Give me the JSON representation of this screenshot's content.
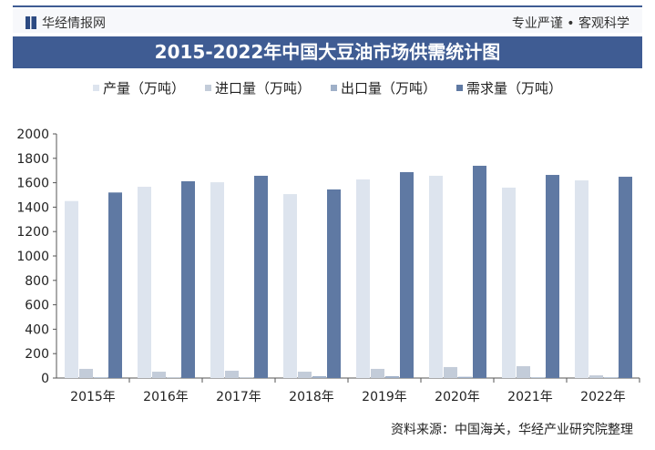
{
  "header": {
    "brand": "华经情报网",
    "slogan": "专业严谨 • 客观科学"
  },
  "chart_data": {
    "type": "bar",
    "title": "2015-2022年中国大豆油市场供需统计图",
    "categories": [
      "2015年",
      "2016年",
      "2017年",
      "2018年",
      "2019年",
      "2020年",
      "2021年",
      "2022年"
    ],
    "series": [
      {
        "name": "产量（万吨）",
        "color": "#dde4ee",
        "values": [
          1450,
          1567,
          1604,
          1507,
          1627,
          1657,
          1560,
          1619
        ]
      },
      {
        "name": "进口量（万吨）",
        "color": "#c3ccd9",
        "values": [
          75,
          52,
          60,
          52,
          75,
          90,
          97,
          22
        ]
      },
      {
        "name": "出口量（万吨）",
        "color": "#9fb0c8",
        "values": [
          5,
          3,
          3,
          15,
          15,
          10,
          5,
          5
        ]
      },
      {
        "name": "需求量（万吨）",
        "color": "#5f79a3",
        "values": [
          1520,
          1612,
          1657,
          1545,
          1687,
          1739,
          1664,
          1649
        ]
      }
    ],
    "ylim": [
      0,
      2000
    ],
    "yticks": [
      0,
      200,
      400,
      600,
      800,
      1000,
      1200,
      1400,
      1600,
      1800,
      2000
    ],
    "legend": "top",
    "grid": false
  },
  "source": "资料来源：中国海关，华经产业研究院整理"
}
